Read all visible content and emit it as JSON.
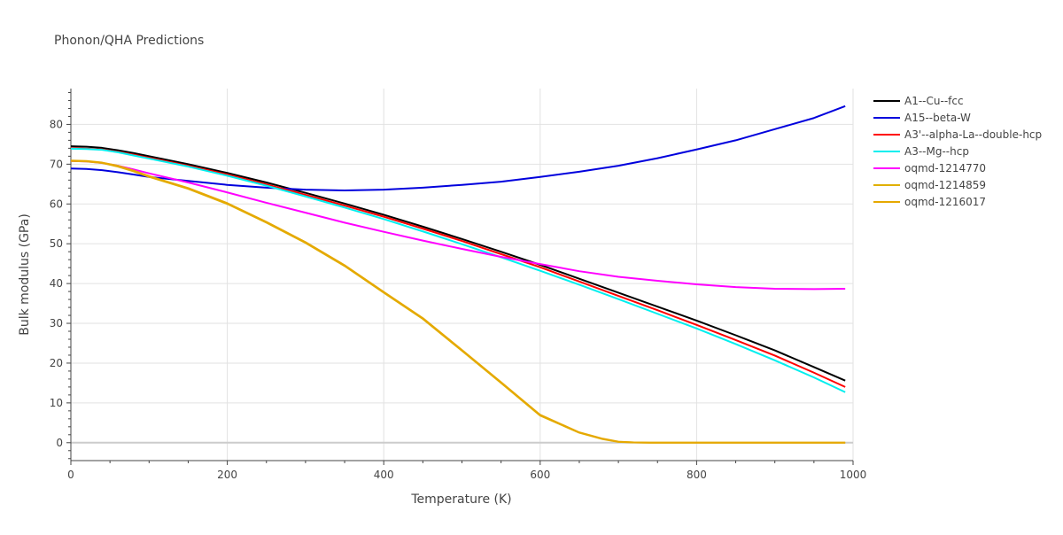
{
  "chart_data": {
    "type": "line",
    "title": "Phonon/QHA Predictions",
    "xlabel": "Temperature (K)",
    "ylabel": "Bulk modulus (GPa)",
    "xlim": [
      0,
      1000
    ],
    "ylim": [
      -4.5,
      89
    ],
    "x_ticks": [
      0,
      200,
      400,
      600,
      800,
      1000
    ],
    "y_ticks": [
      0,
      10,
      20,
      30,
      40,
      50,
      60,
      70,
      80
    ],
    "grid": true,
    "legend_position": "top-right",
    "series": [
      {
        "name": "A1--Cu--fcc",
        "color": "#000000",
        "x": [
          0,
          20,
          40,
          60,
          80,
          100,
          150,
          200,
          250,
          300,
          350,
          400,
          450,
          500,
          550,
          600,
          650,
          700,
          750,
          800,
          850,
          900,
          950,
          990
        ],
        "y": [
          74.5,
          74.4,
          74.1,
          73.5,
          72.8,
          72.0,
          70.0,
          67.8,
          65.4,
          62.8,
          60.1,
          57.3,
          54.3,
          51.2,
          48.0,
          44.7,
          41.2,
          37.7,
          34.2,
          30.7,
          27.0,
          23.2,
          19.0,
          15.6
        ]
      },
      {
        "name": "A15--beta-W",
        "color": "#0000dd",
        "x": [
          0,
          20,
          40,
          60,
          80,
          100,
          150,
          200,
          250,
          300,
          350,
          400,
          450,
          500,
          550,
          600,
          650,
          700,
          750,
          800,
          850,
          900,
          950,
          990
        ],
        "y": [
          68.9,
          68.8,
          68.5,
          68.0,
          67.4,
          66.8,
          65.8,
          64.8,
          64.1,
          63.6,
          63.4,
          63.6,
          64.1,
          64.8,
          65.6,
          66.8,
          68.1,
          69.6,
          71.5,
          73.7,
          76.0,
          78.8,
          81.6,
          84.6
        ]
      },
      {
        "name": "A3'--alpha-La--double-hcp",
        "color": "#ff0000",
        "x": [
          0,
          20,
          40,
          60,
          80,
          100,
          150,
          200,
          250,
          300,
          350,
          400,
          450,
          500,
          550,
          600,
          650,
          700,
          750,
          800,
          850,
          900,
          950,
          990
        ],
        "y": [
          74.0,
          73.9,
          73.7,
          73.1,
          72.4,
          71.6,
          69.6,
          67.4,
          64.9,
          62.3,
          59.6,
          56.8,
          53.8,
          50.7,
          47.4,
          44.1,
          40.5,
          36.9,
          33.3,
          29.6,
          25.8,
          21.9,
          17.6,
          14.0
        ]
      },
      {
        "name": "A3--Mg--hcp",
        "color": "#00eeee",
        "x": [
          0,
          20,
          40,
          60,
          80,
          100,
          150,
          200,
          250,
          300,
          350,
          400,
          450,
          500,
          550,
          600,
          650,
          700,
          750,
          800,
          850,
          900,
          950,
          990
        ],
        "y": [
          73.9,
          73.8,
          73.6,
          73.0,
          72.2,
          71.4,
          69.4,
          67.1,
          64.6,
          61.9,
          59.1,
          56.2,
          53.1,
          49.9,
          46.6,
          43.2,
          39.7,
          36.1,
          32.4,
          28.7,
          24.8,
          20.7,
          16.4,
          12.7
        ]
      },
      {
        "name": "oqmd-1214770",
        "color": "#ff00ff",
        "x": [
          0,
          20,
          40,
          60,
          80,
          100,
          150,
          200,
          250,
          300,
          350,
          400,
          450,
          500,
          550,
          600,
          650,
          700,
          750,
          800,
          850,
          900,
          950,
          990
        ],
        "y": [
          70.8,
          70.7,
          70.3,
          69.6,
          68.7,
          67.7,
          65.4,
          62.9,
          60.3,
          57.8,
          55.3,
          53.0,
          50.8,
          48.7,
          46.7,
          44.9,
          43.1,
          41.7,
          40.7,
          39.8,
          39.1,
          38.7,
          38.6,
          38.7
        ]
      },
      {
        "name": "oqmd-1214859",
        "color": "#e0b000",
        "x": [
          0,
          20,
          40,
          60,
          80,
          100,
          150,
          200,
          250,
          300,
          350,
          400,
          450,
          500,
          550,
          600,
          650,
          680,
          700,
          720,
          740,
          800,
          900,
          990
        ],
        "y": [
          70.8,
          70.7,
          70.3,
          69.4,
          68.2,
          66.8,
          63.8,
          60.0,
          55.3,
          50.2,
          44.4,
          37.7,
          31.1,
          23.1,
          15.0,
          6.8,
          2.5,
          0.9,
          0.2,
          0.05,
          0.0,
          0.0,
          0.0,
          0.0
        ]
      },
      {
        "name": "oqmd-1216017",
        "color": "#e6a800",
        "x": [
          0,
          20,
          40,
          60,
          80,
          100,
          150,
          200,
          250,
          300,
          350,
          400,
          450,
          500,
          550,
          600,
          650,
          680,
          700,
          720,
          740,
          800,
          900,
          990
        ],
        "y": [
          70.9,
          70.8,
          70.4,
          69.6,
          68.4,
          67.0,
          64.0,
          60.2,
          55.5,
          50.4,
          44.6,
          37.9,
          31.3,
          23.3,
          15.2,
          7.0,
          2.6,
          1.0,
          0.25,
          0.05,
          0.0,
          0.0,
          0.0,
          0.0
        ]
      }
    ]
  }
}
